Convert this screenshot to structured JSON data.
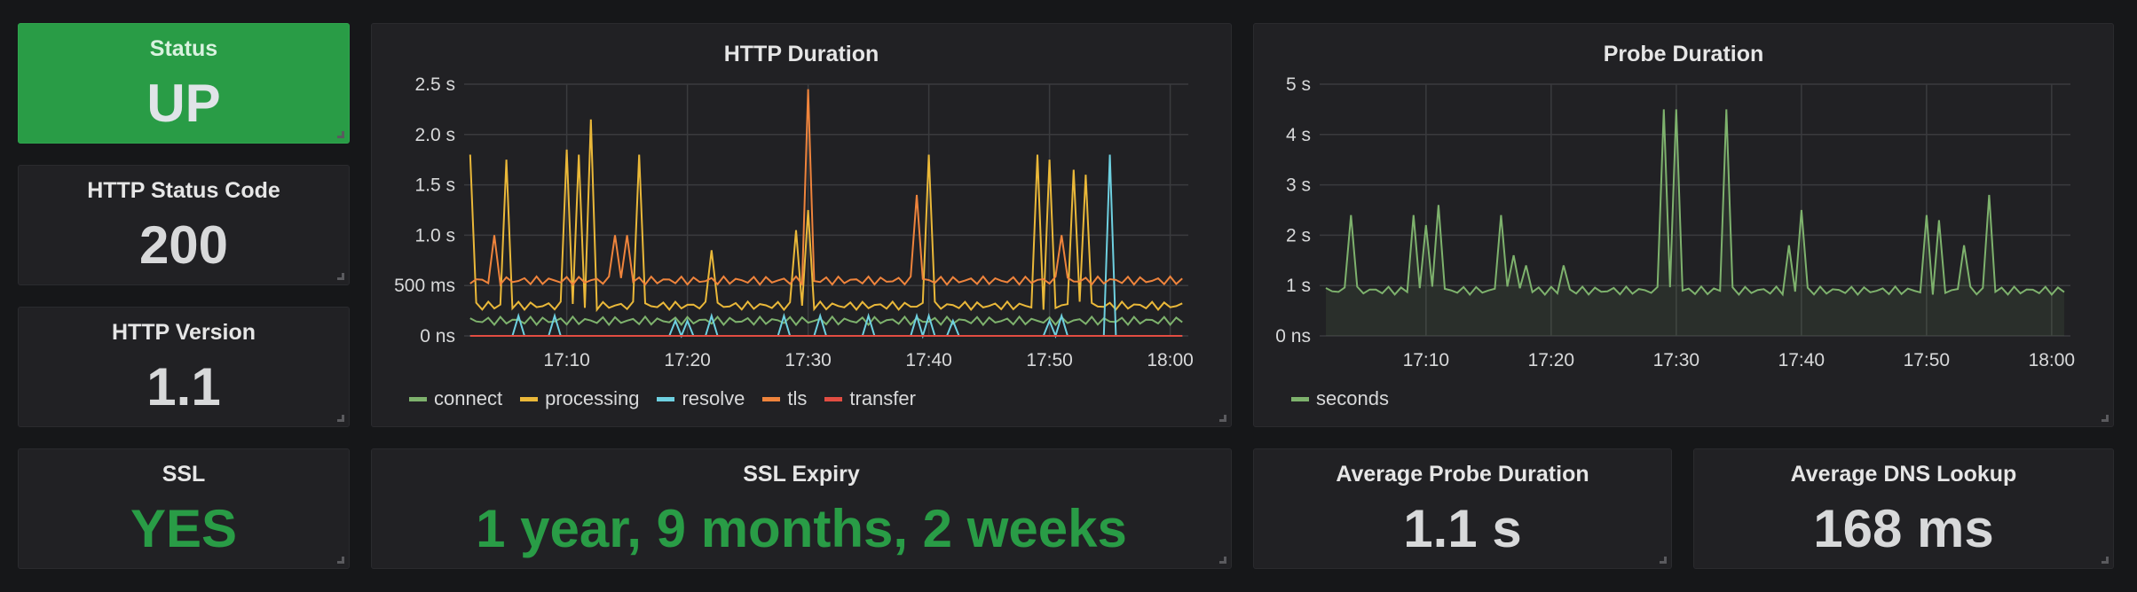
{
  "stat_panels": {
    "status": {
      "title": "Status",
      "value": "UP"
    },
    "http_status_code": {
      "title": "HTTP Status Code",
      "value": "200"
    },
    "http_version": {
      "title": "HTTP Version",
      "value": "1.1"
    },
    "ssl": {
      "title": "SSL",
      "value": "YES"
    },
    "ssl_expiry": {
      "title": "SSL Expiry",
      "value": "1 year, 9 months, 2 weeks"
    },
    "avg_probe_duration": {
      "title": "Average Probe Duration",
      "value": "1.1 s"
    },
    "avg_dns_lookup": {
      "title": "Average DNS Lookup",
      "value": "168 ms"
    }
  },
  "colors": {
    "ok_green": "#299c46",
    "connect": "#7eb26d",
    "processing": "#eab839",
    "resolve": "#6ed0e0",
    "tls": "#ef843c",
    "transfer": "#e24d42",
    "seconds": "#7eb26d"
  },
  "chart_data": [
    {
      "type": "line",
      "title": "HTTP Duration",
      "x_ticks": [
        "17:10",
        "17:20",
        "17:30",
        "17:40",
        "17:50",
        "18:00"
      ],
      "y_ticks": [
        "0 ns",
        "500 ms",
        "1.0 s",
        "1.5 s",
        "2.0 s",
        "2.5 s"
      ],
      "ylim": [
        0,
        2.5
      ],
      "grid": true,
      "legend_position": "bottom-left",
      "series": [
        {
          "name": "connect",
          "baseline": 0.15,
          "spikes": []
        },
        {
          "name": "processing",
          "baseline": 0.3,
          "spikes": [
            [
              "17:02",
              1.8
            ],
            [
              "17:05",
              1.75
            ],
            [
              "17:10",
              1.85
            ],
            [
              "17:11",
              1.8
            ],
            [
              "17:12",
              2.15
            ],
            [
              "17:16",
              1.8
            ],
            [
              "17:22",
              0.85
            ],
            [
              "17:29",
              1.05
            ],
            [
              "17:30",
              1.25
            ],
            [
              "17:40",
              1.8
            ],
            [
              "17:49",
              1.8
            ],
            [
              "17:50",
              1.75
            ],
            [
              "17:52",
              1.65
            ],
            [
              "17:53",
              1.6
            ]
          ]
        },
        {
          "name": "resolve",
          "baseline": 0.0,
          "spikes": [
            [
              "17:06",
              0.2
            ],
            [
              "17:09",
              0.2
            ],
            [
              "17:19",
              0.15
            ],
            [
              "17:20",
              0.15
            ],
            [
              "17:22",
              0.2
            ],
            [
              "17:28",
              0.2
            ],
            [
              "17:31",
              0.2
            ],
            [
              "17:35",
              0.2
            ],
            [
              "17:39",
              0.2
            ],
            [
              "17:40",
              0.2
            ],
            [
              "17:42",
              0.15
            ],
            [
              "17:50",
              0.15
            ],
            [
              "17:51",
              0.2
            ],
            [
              "17:55",
              1.8
            ]
          ]
        },
        {
          "name": "tls",
          "baseline": 0.55,
          "spikes": [
            [
              "17:04",
              1.0
            ],
            [
              "17:14",
              1.0
            ],
            [
              "17:15",
              1.0
            ],
            [
              "17:30",
              2.45
            ],
            [
              "17:39",
              1.4
            ],
            [
              "17:51",
              1.0
            ]
          ]
        },
        {
          "name": "transfer",
          "baseline": 0.0,
          "spikes": []
        }
      ]
    },
    {
      "type": "area",
      "title": "Probe Duration",
      "x_ticks": [
        "17:10",
        "17:20",
        "17:30",
        "17:40",
        "17:50",
        "18:00"
      ],
      "y_ticks": [
        "0 ns",
        "1 s",
        "2 s",
        "3 s",
        "4 s",
        "5 s"
      ],
      "ylim": [
        0,
        5
      ],
      "grid": true,
      "legend_position": "bottom-left",
      "series": [
        {
          "name": "seconds",
          "baseline": 0.9,
          "spikes": [
            [
              "17:01",
              2.4
            ],
            [
              "17:04",
              2.4
            ],
            [
              "17:09",
              2.4
            ],
            [
              "17:10",
              2.2
            ],
            [
              "17:11",
              2.6
            ],
            [
              "17:16",
              2.4
            ],
            [
              "17:17",
              1.6
            ],
            [
              "17:18",
              1.4
            ],
            [
              "17:21",
              1.4
            ],
            [
              "17:29",
              4.5
            ],
            [
              "17:30",
              4.5
            ],
            [
              "17:34",
              4.5
            ],
            [
              "17:39",
              1.8
            ],
            [
              "17:40",
              2.5
            ],
            [
              "17:50",
              2.4
            ],
            [
              "17:51",
              2.3
            ],
            [
              "17:53",
              1.8
            ],
            [
              "17:55",
              2.8
            ]
          ]
        }
      ]
    }
  ]
}
